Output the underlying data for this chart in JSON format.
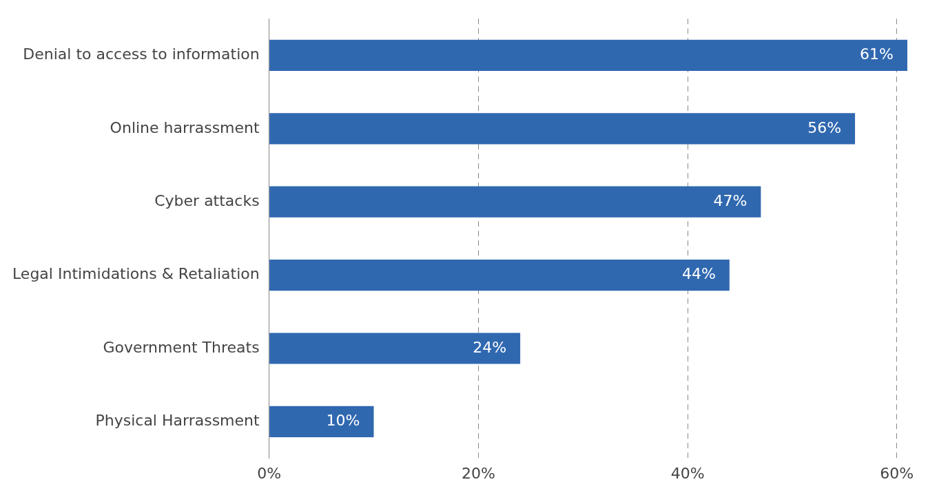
{
  "chart_data": {
    "type": "bar",
    "orientation": "horizontal",
    "categories": [
      "Denial to access to information",
      "Online harrassment",
      "Cyber attacks",
      "Legal Intimidations & Retaliation",
      "Government Threats",
      "Physical Harrassment"
    ],
    "values": [
      61,
      56,
      47,
      44,
      24,
      10
    ],
    "value_labels": [
      "61%",
      "56%",
      "47%",
      "44%",
      "24%",
      "10%"
    ],
    "color": "#3068b0",
    "xlim": [
      0,
      61
    ],
    "xticks": [
      {
        "value": 0,
        "label": "0%"
      },
      {
        "value": 20,
        "label": "20%"
      },
      {
        "value": 40,
        "label": "40%"
      },
      {
        "value": 60,
        "label": "60%"
      }
    ],
    "grid": "x",
    "legend": false
  }
}
